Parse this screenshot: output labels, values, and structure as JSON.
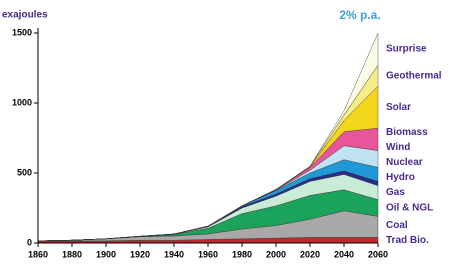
{
  "chart_data": {
    "type": "stacked_area",
    "title": "2% p.a.",
    "y_label": "exajoules",
    "x": [
      1860,
      1880,
      1900,
      1920,
      1940,
      1960,
      1980,
      2000,
      2020,
      2040,
      2060
    ],
    "xlim": [
      1860,
      2060
    ],
    "xticks": [
      1860,
      1880,
      1900,
      1920,
      1940,
      1960,
      1980,
      2000,
      2020,
      2040,
      2060
    ],
    "ylim": [
      0,
      1500
    ],
    "yticks": [
      0,
      500,
      1000,
      1500
    ],
    "series": [
      {
        "name": "Trad Bio.",
        "color": "#c0282d",
        "values": [
          15,
          15,
          15,
          20,
          20,
          25,
          30,
          35,
          40,
          40,
          40
        ]
      },
      {
        "name": "Coal",
        "color": "#a8a8a8",
        "values": [
          0,
          5,
          15,
          25,
          30,
          40,
          70,
          90,
          130,
          190,
          150
        ]
      },
      {
        "name": "Oil & NGL",
        "color": "#1ba35c",
        "values": [
          0,
          0,
          0,
          2,
          10,
          40,
          110,
          140,
          170,
          150,
          120
        ]
      },
      {
        "name": "Gas",
        "color": "#c9ecd8",
        "values": [
          0,
          0,
          0,
          0,
          2,
          10,
          40,
          70,
          100,
          110,
          100
        ]
      },
      {
        "name": "Hydro",
        "color": "#2b2b8c",
        "values": [
          0,
          0,
          0,
          1,
          2,
          5,
          10,
          15,
          20,
          25,
          30
        ]
      },
      {
        "name": "Nuclear",
        "color": "#1f9ad6",
        "values": [
          0,
          0,
          0,
          0,
          0,
          0,
          5,
          25,
          40,
          80,
          100
        ]
      },
      {
        "name": "Wind",
        "color": "#bfe3f3",
        "values": [
          0,
          0,
          0,
          0,
          0,
          0,
          0,
          2,
          20,
          100,
          120
        ]
      },
      {
        "name": "Biomass",
        "color": "#e8559a",
        "values": [
          0,
          0,
          0,
          0,
          0,
          0,
          0,
          5,
          20,
          100,
          160
        ]
      },
      {
        "name": "Solar",
        "color": "#f3d51c",
        "values": [
          0,
          0,
          0,
          0,
          0,
          0,
          0,
          0,
          5,
          80,
          300
        ]
      },
      {
        "name": "Geothermal",
        "color": "#f7ec86",
        "values": [
          0,
          0,
          0,
          0,
          0,
          0,
          0,
          0,
          2,
          40,
          150
        ]
      },
      {
        "name": "Surprise",
        "color": "#fbfbe6",
        "values": [
          0,
          0,
          0,
          0,
          0,
          0,
          0,
          0,
          0,
          30,
          230
        ]
      }
    ]
  }
}
